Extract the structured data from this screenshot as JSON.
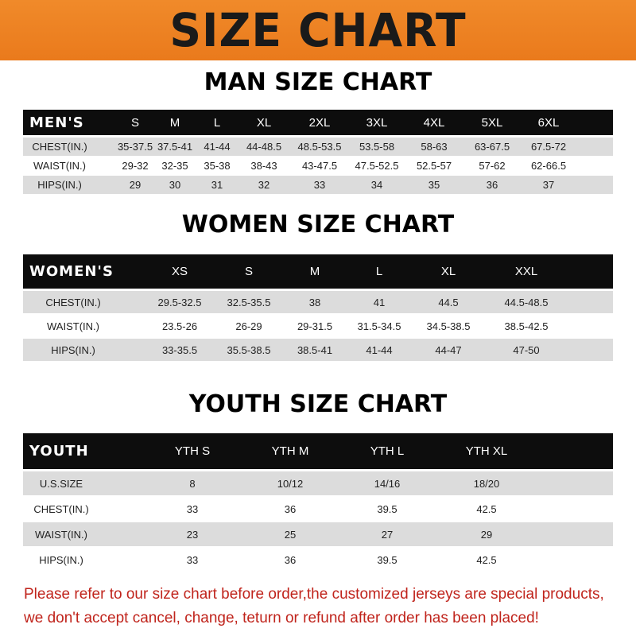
{
  "banner_title": "SIZE CHART",
  "men": {
    "title": "MAN SIZE CHART",
    "header": [
      "MEN'S",
      "S",
      "M",
      "L",
      "XL",
      "2XL",
      "3XL",
      "4XL",
      "5XL",
      "6XL"
    ],
    "rows": [
      [
        "CHEST(IN.)",
        "35-37.5",
        "37.5-41",
        "41-44",
        "44-48.5",
        "48.5-53.5",
        "53.5-58",
        "58-63",
        "63-67.5",
        "67.5-72"
      ],
      [
        "WAIST(IN.)",
        "29-32",
        "32-35",
        "35-38",
        "38-43",
        "43-47.5",
        "47.5-52.5",
        "52.5-57",
        "57-62",
        "62-66.5"
      ],
      [
        "HIPS(IN.)",
        "29",
        "30",
        "31",
        "32",
        "33",
        "34",
        "35",
        "36",
        "37"
      ]
    ]
  },
  "women": {
    "title": "WOMEN SIZE CHART",
    "header": [
      "WOMEN'S",
      "XS",
      "S",
      "M",
      "L",
      "XL",
      "XXL"
    ],
    "rows": [
      [
        "CHEST(IN.)",
        "29.5-32.5",
        "32.5-35.5",
        "38",
        "41",
        "44.5",
        "44.5-48.5"
      ],
      [
        "WAIST(IN.)",
        "23.5-26",
        "26-29",
        "29-31.5",
        "31.5-34.5",
        "34.5-38.5",
        "38.5-42.5"
      ],
      [
        "HIPS(IN.)",
        "33-35.5",
        "35.5-38.5",
        "38.5-41",
        "41-44",
        "44-47",
        "47-50"
      ]
    ]
  },
  "youth": {
    "title": "YOUTH SIZE CHART",
    "header": [
      "YOUTH",
      "YTH S",
      "YTH M",
      "YTH L",
      "YTH XL"
    ],
    "rows": [
      [
        "U.S.SIZE",
        "8",
        "10/12",
        "14/16",
        "18/20"
      ],
      [
        "CHEST(IN.)",
        "33",
        "36",
        "39.5",
        "42.5"
      ],
      [
        "WAIST(IN.)",
        "23",
        "25",
        "27",
        "29"
      ],
      [
        "HIPS(IN.)",
        "33",
        "36",
        "39.5",
        "42.5"
      ]
    ]
  },
  "footer": {
    "line1": "Please refer to our size chart before order,the customized jerseys are special products,",
    "line2": "we don't accept cancel, change, teturn or refund after order has been placed!"
  },
  "colors": {
    "banner": "#ee8224",
    "header_row": "#0d0d0d",
    "stripe": "#dcdcdc",
    "footer_text": "#c0241c"
  }
}
